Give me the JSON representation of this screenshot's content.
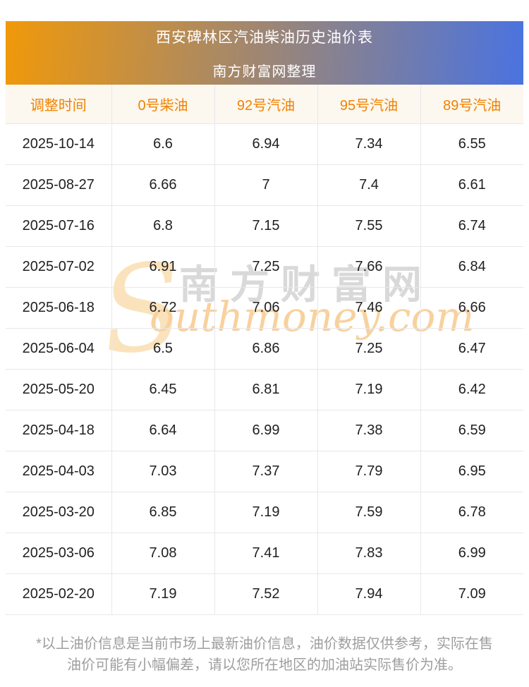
{
  "banner": {
    "title": "西安碑林区汽油柴油历史油价表",
    "subtitle": "南方财富网整理",
    "gradient_from": "#f0990a",
    "gradient_to": "#4a73e0",
    "text_color": "#ffffff"
  },
  "chart_data": {
    "type": "table",
    "title": "西安碑林区汽油柴油历史油价表",
    "columns": [
      "调整时间",
      "0号柴油",
      "92号汽油",
      "95号汽油",
      "89号汽油"
    ],
    "rows": [
      [
        "2025-10-14",
        "6.6",
        "6.94",
        "7.34",
        "6.55"
      ],
      [
        "2025-08-27",
        "6.66",
        "7",
        "7.4",
        "6.61"
      ],
      [
        "2025-07-16",
        "6.8",
        "7.15",
        "7.55",
        "6.74"
      ],
      [
        "2025-07-02",
        "6.91",
        "7.25",
        "7.66",
        "6.84"
      ],
      [
        "2025-06-18",
        "6.72",
        "7.06",
        "7.46",
        "6.66"
      ],
      [
        "2025-06-04",
        "6.5",
        "6.86",
        "7.25",
        "6.47"
      ],
      [
        "2025-05-20",
        "6.45",
        "6.81",
        "7.19",
        "6.42"
      ],
      [
        "2025-04-18",
        "6.64",
        "6.99",
        "7.38",
        "6.59"
      ],
      [
        "2025-04-03",
        "7.03",
        "7.37",
        "7.79",
        "6.95"
      ],
      [
        "2025-03-20",
        "6.85",
        "7.19",
        "7.59",
        "6.78"
      ],
      [
        "2025-03-06",
        "7.08",
        "7.41",
        "7.83",
        "6.99"
      ],
      [
        "2025-02-20",
        "7.19",
        "7.52",
        "7.94",
        "7.09"
      ]
    ],
    "header_text_color": "#f08300",
    "header_bg_color": "#fcf7ef",
    "grid_color": "#e7e8ec"
  },
  "watermark": {
    "initial": "S",
    "cn": "南方财富网",
    "en": "outhmoney.com",
    "cn_color": "#d9d9d9",
    "en_color": "#f8d19e"
  },
  "footer": {
    "line1": "*以上油价信息是当前市场上最新油价信息，油价数据仅供参考，实际在售",
    "line2": "油价可能有小幅偏差，请以您所在地区的加油站实际售价为准。"
  }
}
